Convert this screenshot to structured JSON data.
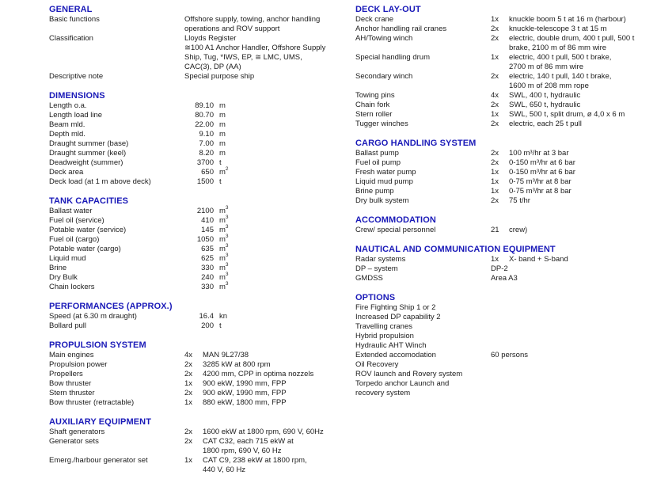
{
  "colors": {
    "header_blue": "#1a1ab8",
    "body_text": "#1c1c1c",
    "background": "#ffffff"
  },
  "columns": [
    {
      "sections": [
        {
          "title": "GENERAL",
          "rows": [
            {
              "label": "Basic functions",
              "value": "Offshore supply, towing, anchor handling\noperations and ROV support"
            },
            {
              "label": "Classification",
              "value": "Lloyds Register\n≅100 A1 Anchor Handler, Offshore Supply\nShip, Tug, *IWS, EP, ≅ LMC, UMS,\nCAC(3), DP (AA)"
            },
            {
              "label": "Descriptive note",
              "value": "Special purpose ship"
            }
          ]
        },
        {
          "title": "DIMENSIONS",
          "rows": [
            {
              "label": "Length o.a.",
              "num": "89.10",
              "unit": "m"
            },
            {
              "label": "Length load line",
              "num": "80.70",
              "unit": "m"
            },
            {
              "label": "Beam mld.",
              "num": "22.00",
              "unit": "m"
            },
            {
              "label": "Depth mld.",
              "num": "9.10",
              "unit": "m"
            },
            {
              "label": "Draught summer (base)",
              "num": "7.00",
              "unit": "m"
            },
            {
              "label": "Draught summer (keel)",
              "num": "8.20",
              "unit": "m"
            },
            {
              "label": "Deadweight (summer)",
              "num": "3700",
              "unit": "t"
            },
            {
              "label": "Deck area",
              "num": "650",
              "unit": "m",
              "usup": "2"
            },
            {
              "label": "Deck load (at 1 m above deck)",
              "num": "1500",
              "unit": "t"
            }
          ]
        },
        {
          "title": "TANK CAPACITIES",
          "rows": [
            {
              "label": "Ballast water",
              "num": "2100",
              "unit": "m",
              "usup": "3"
            },
            {
              "label": "Fuel oil (service)",
              "num": "410",
              "unit": "m",
              "usup": "3"
            },
            {
              "label": "Potable water (service)",
              "num": "145",
              "unit": "m",
              "usup": "3"
            },
            {
              "label": "Fuel oil (cargo)",
              "num": "1050",
              "unit": "m",
              "usup": "3"
            },
            {
              "label": "Potable water (cargo)",
              "num": "635",
              "unit": "m",
              "usup": "3"
            },
            {
              "label": "Liquid mud",
              "num": "625",
              "unit": "m",
              "usup": "3"
            },
            {
              "label": "Brine",
              "num": "330",
              "unit": "m",
              "usup": "3"
            },
            {
              "label": "Dry Bulk",
              "num": "240",
              "unit": "m",
              "usup": "3"
            },
            {
              "label": "Chain lockers",
              "num": "330",
              "unit": "m",
              "usup": "3"
            }
          ]
        },
        {
          "title": "PERFORMANCES (APPROX.)",
          "rows": [
            {
              "label": "Speed (at 6.30 m draught)",
              "num": "16.4",
              "unit": "kn"
            },
            {
              "label": "Bollard pull",
              "num": "200",
              "unit": "t"
            }
          ]
        },
        {
          "title": "PROPULSION SYSTEM",
          "rows": [
            {
              "label": "Main engines",
              "qty": "4x",
              "value": "MAN 9L27/38"
            },
            {
              "label": "Propulsion power",
              "qty": "2x",
              "value": "3285 kW at 800 rpm"
            },
            {
              "label": "Propellers",
              "qty": "2x",
              "value": "4200 mm, CPP in optima nozzels"
            },
            {
              "label": "Bow thruster",
              "qty": "1x",
              "value": "900 ekW, 1990 mm, FPP"
            },
            {
              "label": "Stern thruster",
              "qty": "2x",
              "value": "900 ekW, 1990 mm, FPP"
            },
            {
              "label": "Bow thruster (retractable)",
              "qty": "1x",
              "value": "880 ekW, 1800 mm, FPP"
            }
          ]
        },
        {
          "title": "AUXILIARY EQUIPMENT",
          "rows": [
            {
              "label": "Shaft generators",
              "qty": "2x",
              "value": "1600 ekW at 1800 rpm, 690 V, 60Hz"
            },
            {
              "label": "Generator sets",
              "qty": "2x",
              "value": "CAT C32, each 715 ekW at\n1800 rpm, 690 V, 60 Hz"
            },
            {
              "label": "Emerg./harbour generator set",
              "qty": "1x",
              "value": "CAT C9, 238 ekW at 1800 rpm,\n440 V, 60 Hz"
            }
          ]
        }
      ]
    },
    {
      "sections": [
        {
          "title": "DECK LAY-OUT",
          "rows": [
            {
              "label": "Deck crane",
              "qty": "1x",
              "value": "knuckle boom 5 t at 16 m (harbour)"
            },
            {
              "label": "Anchor handling rail cranes",
              "qty": "2x",
              "value": "knuckle-telescope 3 t at 15 m"
            },
            {
              "label": "AH/Towing winch",
              "qty": "2x",
              "value": "electric, double drum, 400 t pull, 500 t\nbrake, 2100 m of 86 mm wire"
            },
            {
              "label": "Special handling drum",
              "qty": "1x",
              "value": "electric, 400 t pull, 500 t brake,\n2700 m of 86 mm wire"
            },
            {
              "label": "Secondary winch",
              "qty": "2x",
              "value": "electric, 140 t pull, 140 t brake,\n1600 m of 208 mm rope"
            },
            {
              "label": "Towing pins",
              "qty": "4x",
              "value": "SWL, 400 t, hydraulic"
            },
            {
              "label": "Chain fork",
              "qty": "2x",
              "value": "SWL, 650 t, hydraulic"
            },
            {
              "label": "Stern roller",
              "qty": "1x",
              "value": "SWL, 500 t, split drum, ø 4,0 x 6 m"
            },
            {
              "label": "Tugger winches",
              "qty": "2x",
              "value": "electric, each 25 t pull"
            }
          ]
        },
        {
          "title": "CARGO HANDLING SYSTEM",
          "rows": [
            {
              "label": "Ballast pump",
              "qty": "2x",
              "value": "100 m³/hr at 3 bar"
            },
            {
              "label": "Fuel oil pump",
              "qty": "2x",
              "value": "0-150 m³/hr at 6 bar"
            },
            {
              "label": "Fresh water pump",
              "qty": "1x",
              "value": "0-150 m³/hr at 6 bar"
            },
            {
              "label": "Liquid mud pump",
              "qty": "1x",
              "value": "0-75 m³/hr at 8 bar"
            },
            {
              "label": "Brine pump",
              "qty": "1x",
              "value": "0-75 m³/hr at 8 bar"
            },
            {
              "label": "Dry bulk system",
              "qty": "2x",
              "value": "75 t/hr"
            }
          ]
        },
        {
          "title": "ACCOMMODATION",
          "rows": [
            {
              "label": "Crew/ special personnel",
              "qty": "21",
              "value": "crew)"
            }
          ]
        },
        {
          "title": "NAUTICAL AND COMMUNICATION EQUIPMENT",
          "rows": [
            {
              "label": "Radar systems",
              "qty": "1x",
              "value": "X- band + S-band"
            },
            {
              "label": "DP – system",
              "value": "DP-2"
            },
            {
              "label": "GMDSS",
              "value": "Area A3"
            }
          ]
        },
        {
          "title": "OPTIONS",
          "rows": [
            {
              "label": "Fire Fighting Ship 1 or 2"
            },
            {
              "label": "Increased DP capability 2"
            },
            {
              "label": "Travelling cranes"
            },
            {
              "label": "Hybrid propulsion"
            },
            {
              "label": "Hydraulic AHT Winch"
            },
            {
              "label": "Extended accomodation",
              "value": "60 persons"
            },
            {
              "label": "Oil Recovery"
            },
            {
              "label": "ROV launch and Rovery system"
            },
            {
              "label": "Torpedo anchor Launch and\nrecovery system"
            }
          ]
        }
      ]
    }
  ]
}
